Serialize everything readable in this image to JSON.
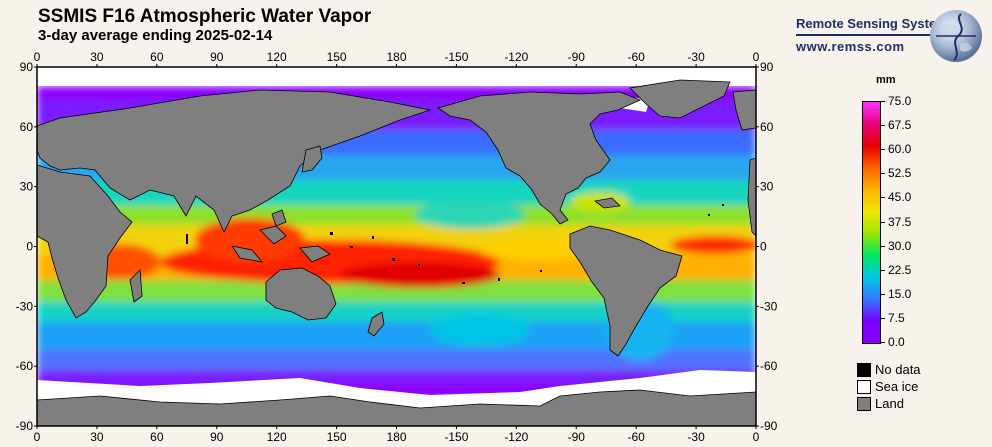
{
  "header": {
    "title": "SSMIS F16 Atmospheric Water Vapor",
    "subtitle": "3-day average ending 2025-02-14"
  },
  "branding": {
    "name": "Remote Sensing Systems",
    "url": "www.remss.com"
  },
  "map": {
    "projection": "equirectangular",
    "lon_ticks": [
      "0",
      "30",
      "60",
      "90",
      "120",
      "150",
      "180",
      "-150",
      "-120",
      "-90",
      "-60",
      "-30",
      "0"
    ],
    "lat_ticks": [
      "90",
      "60",
      "30",
      "0",
      "-30",
      "-60",
      "-90"
    ],
    "background_color": "#ffffff",
    "land_color": "#7f7f7f"
  },
  "colorbar": {
    "units": "mm",
    "ticks": [
      "75.0",
      "67.5",
      "60.0",
      "52.5",
      "45.0",
      "37.5",
      "30.0",
      "22.5",
      "15.0",
      "7.5",
      "0.0"
    ],
    "colors": [
      "#ff33ff",
      "#e8007e",
      "#e60000",
      "#ff6400",
      "#ffb400",
      "#f0e600",
      "#9be600",
      "#00e664",
      "#00c8e6",
      "#3278ff",
      "#7800ff",
      "#8c00ff"
    ]
  },
  "legend": [
    {
      "label": "No data",
      "color": "#000000"
    },
    {
      "label": "Sea ice",
      "color": "#ffffff"
    },
    {
      "label": "Land",
      "color": "#7f7f7f"
    }
  ]
}
